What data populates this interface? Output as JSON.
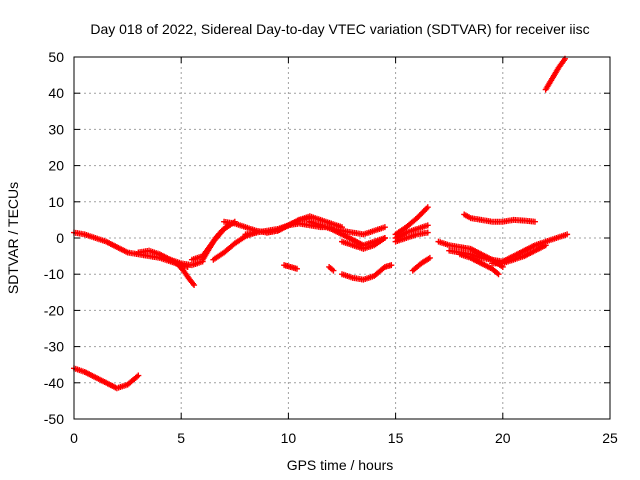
{
  "chart_data": {
    "type": "scatter",
    "title": "Day 018 of 2022, Sidereal Day-to-day VTEC variation (SDTVAR) for receiver iisc",
    "xlabel": "GPS time / hours",
    "ylabel": "SDTVAR / TECUs",
    "xlim": [
      0,
      25
    ],
    "ylim": [
      -50,
      50
    ],
    "xticks": [
      0,
      5,
      10,
      15,
      20,
      25
    ],
    "yticks": [
      -50,
      -40,
      -30,
      -20,
      -10,
      0,
      10,
      20,
      30,
      40,
      50
    ],
    "xtick_labels": [
      "0",
      "5",
      "10",
      "15",
      "20",
      "25"
    ],
    "ytick_labels": [
      "-50",
      "-40",
      "-30",
      "-20",
      "-10",
      "0",
      "10",
      "20",
      "30",
      "40",
      "50"
    ],
    "grid": true,
    "marker": "plus",
    "color": "#ff0000",
    "series": [
      {
        "name": "s1",
        "x": [
          0.0,
          0.5,
          1.0,
          1.5,
          2.0,
          2.5,
          3.0,
          3.5,
          4.0,
          4.5,
          5.0,
          5.3
        ],
        "y": [
          1.5,
          1.0,
          0.0,
          -1.0,
          -2.5,
          -4.0,
          -4.5,
          -5.0,
          -5.5,
          -6.5,
          -7.5,
          -8.0
        ]
      },
      {
        "name": "s2",
        "x": [
          3.0,
          3.5,
          4.0,
          4.5,
          5.0,
          5.5,
          6.0
        ],
        "y": [
          -4.0,
          -3.5,
          -4.5,
          -6.0,
          -7.0,
          -7.5,
          -6.5
        ]
      },
      {
        "name": "s3",
        "x": [
          4.5,
          4.8,
          5.1,
          5.4,
          5.6
        ],
        "y": [
          -6.0,
          -7.0,
          -9.0,
          -11.5,
          -13.0
        ]
      },
      {
        "name": "s4",
        "x": [
          5.5,
          6.0,
          6.5,
          7.0,
          7.5
        ],
        "y": [
          -6.0,
          -5.0,
          -1.0,
          2.5,
          4.5
        ]
      },
      {
        "name": "s5",
        "x": [
          6.0,
          6.3,
          6.6,
          6.9,
          7.2
        ],
        "y": [
          -6.0,
          -3.0,
          0.0,
          2.0,
          3.5
        ]
      },
      {
        "name": "s6",
        "x": [
          6.5,
          7.0,
          7.5,
          8.0,
          8.5
        ],
        "y": [
          -6.0,
          -4.0,
          -1.5,
          0.5,
          1.5
        ]
      },
      {
        "name": "s7",
        "x": [
          7.0,
          7.5,
          8.0,
          8.5,
          9.0,
          9.5,
          10.0,
          10.5,
          11.0
        ],
        "y": [
          4.5,
          4.0,
          3.0,
          2.0,
          1.5,
          2.0,
          3.5,
          5.0,
          5.5
        ]
      },
      {
        "name": "s8",
        "x": [
          8.0,
          8.5,
          9.0,
          9.5,
          10.0,
          10.5,
          11.0,
          11.5,
          12.0
        ],
        "y": [
          1.0,
          1.5,
          2.0,
          2.5,
          3.5,
          4.0,
          3.5,
          3.0,
          3.0
        ]
      },
      {
        "name": "s9",
        "x": [
          9.0,
          9.5,
          10.0,
          10.5,
          11.0,
          11.5,
          12.0,
          12.5
        ],
        "y": [
          1.5,
          2.0,
          3.5,
          5.0,
          6.0,
          5.0,
          4.0,
          3.0
        ]
      },
      {
        "name": "s10",
        "x": [
          12.0,
          12.5,
          13.0,
          13.5,
          14.0,
          14.5
        ],
        "y": [
          2.5,
          1.0,
          -0.5,
          -2.0,
          -1.0,
          0.0
        ]
      },
      {
        "name": "s11",
        "x": [
          12.5,
          13.0,
          13.5,
          14.0,
          14.5
        ],
        "y": [
          -1.0,
          -2.0,
          -3.0,
          -2.0,
          0.0
        ]
      },
      {
        "name": "s12",
        "x": [
          11.0,
          11.5,
          12.0,
          12.5,
          13.0,
          13.5,
          14.0,
          14.5
        ],
        "y": [
          4.5,
          3.5,
          2.5,
          2.0,
          1.5,
          1.0,
          2.0,
          3.0
        ]
      },
      {
        "name": "s13",
        "x": [
          9.8,
          10.1,
          10.4
        ],
        "y": [
          -7.5,
          -8.0,
          -8.5
        ]
      },
      {
        "name": "s14",
        "x": [
          11.9,
          12.1
        ],
        "y": [
          -8.0,
          -9.0
        ]
      },
      {
        "name": "s15",
        "x": [
          12.5,
          13.0,
          13.5,
          14.0,
          14.5,
          14.8
        ],
        "y": [
          -10.0,
          -11.0,
          -11.5,
          -10.5,
          -8.0,
          -7.5
        ]
      },
      {
        "name": "s16",
        "x": [
          15.0,
          15.5,
          16.0,
          16.5
        ],
        "y": [
          1.0,
          3.0,
          5.5,
          8.5
        ]
      },
      {
        "name": "s17",
        "x": [
          15.0,
          15.5,
          16.0,
          16.5
        ],
        "y": [
          0.0,
          1.5,
          2.5,
          3.5
        ]
      },
      {
        "name": "s18",
        "x": [
          15.0,
          15.5,
          16.0,
          16.5
        ],
        "y": [
          -1.0,
          0.0,
          1.0,
          1.5
        ]
      },
      {
        "name": "s19",
        "x": [
          15.8,
          16.2,
          16.6
        ],
        "y": [
          -9.0,
          -7.0,
          -5.5
        ]
      },
      {
        "name": "s20",
        "x": [
          17.0,
          17.5,
          18.0,
          18.5,
          19.0,
          19.5,
          20.0
        ],
        "y": [
          -1.0,
          -2.0,
          -2.5,
          -3.0,
          -4.5,
          -6.0,
          -8.0
        ]
      },
      {
        "name": "s21",
        "x": [
          17.5,
          18.0,
          18.5,
          19.0,
          19.5,
          20.0,
          20.5,
          21.0,
          21.5,
          22.0,
          22.5,
          23.0
        ],
        "y": [
          -3.5,
          -4.0,
          -4.5,
          -5.5,
          -6.0,
          -6.5,
          -5.0,
          -3.5,
          -2.0,
          -1.0,
          0.0,
          1.0
        ]
      },
      {
        "name": "s22",
        "x": [
          18.0,
          18.5,
          19.0,
          19.5,
          19.8
        ],
        "y": [
          -4.5,
          -5.5,
          -7.0,
          -8.5,
          -10.0
        ]
      },
      {
        "name": "s23",
        "x": [
          19.5,
          20.0,
          20.5,
          21.0,
          21.5,
          22.0
        ],
        "y": [
          -7.0,
          -7.0,
          -6.0,
          -5.0,
          -3.5,
          -2.0
        ]
      },
      {
        "name": "s24",
        "x": [
          18.2,
          18.5,
          19.0,
          19.5,
          20.0,
          20.5,
          21.0,
          21.5
        ],
        "y": [
          6.5,
          5.5,
          5.0,
          4.5,
          4.5,
          5.0,
          4.8,
          4.5
        ]
      },
      {
        "name": "s25",
        "x": [
          22.0,
          22.3,
          22.6,
          22.9
        ],
        "y": [
          41.0,
          44.0,
          47.0,
          49.5
        ]
      },
      {
        "name": "s26",
        "x": [
          0.0,
          0.5,
          1.0,
          1.5,
          2.0,
          2.5,
          3.0
        ],
        "y": [
          -36.0,
          -37.0,
          -38.5,
          -40.0,
          -41.5,
          -40.5,
          -38.0
        ]
      }
    ]
  }
}
